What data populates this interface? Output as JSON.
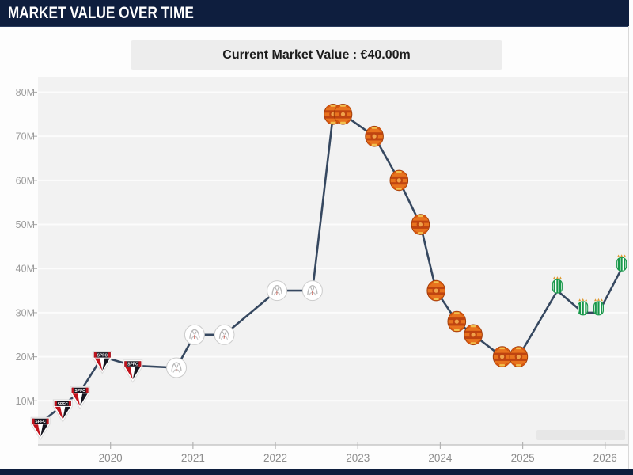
{
  "widget": {
    "title": "MARKET VALUE OVER TIME",
    "current_value_banner": "Current Market Value : €40.00m"
  },
  "colors": {
    "header_bg": "#0e1e3e",
    "banner_bg": "#ededed",
    "plot_bg": "#f2f2f2",
    "gridline": "#fcfcfc",
    "axis_line": "#c8c8c8",
    "tick": "#b3b3b3",
    "y_label": "#9b9b9b",
    "x_label": "#8d8d8d",
    "line": "#364860",
    "sao_paulo_red": "#c1121c",
    "man_united_orange": "#e8731e",
    "betis_green": "#18984a",
    "ajax_silver": "#c9c9c9"
  },
  "icons": {
    "sao-paulo-fc-crest": "red/white/black shield with SPFC wordmark",
    "ajax-crest": "white/silver circle crest",
    "manchester-united-crest": "orange/red round crest",
    "real-betis-crest": "green/white striped crest with crown"
  },
  "chart_data": {
    "type": "line",
    "title": "MARKET VALUE OVER TIME",
    "subtitle": "Current Market Value : €40.00m",
    "xlabel": "",
    "ylabel": "",
    "x_ticks": [
      2020,
      2021,
      2022,
      2023,
      2024,
      2025,
      2026
    ],
    "y_ticks": [
      10,
      20,
      30,
      40,
      50,
      60,
      70,
      80
    ],
    "y_tick_suffix": "M",
    "xlim": [
      2019.12,
      2026.29
    ],
    "ylim": [
      0,
      83.5
    ],
    "grid": true,
    "legend": false,
    "marker_style": "club-crests",
    "unit": "EUR millions",
    "points": [
      {
        "x": 2019.15,
        "y": 5,
        "club": "sao-paulo-fc"
      },
      {
        "x": 2019.42,
        "y": 9,
        "club": "sao-paulo-fc"
      },
      {
        "x": 2019.63,
        "y": 12,
        "club": "sao-paulo-fc"
      },
      {
        "x": 2019.9,
        "y": 20,
        "club": "sao-paulo-fc"
      },
      {
        "x": 2020.27,
        "y": 18,
        "club": "sao-paulo-fc"
      },
      {
        "x": 2020.8,
        "y": 17.5,
        "club": "ajax"
      },
      {
        "x": 2021.02,
        "y": 25,
        "club": "ajax"
      },
      {
        "x": 2021.38,
        "y": 25,
        "club": "ajax"
      },
      {
        "x": 2022.02,
        "y": 35,
        "club": "ajax"
      },
      {
        "x": 2022.45,
        "y": 35,
        "club": "ajax"
      },
      {
        "x": 2022.7,
        "y": 75,
        "club": "manchester-united"
      },
      {
        "x": 2022.82,
        "y": 75,
        "club": "manchester-united"
      },
      {
        "x": 2023.2,
        "y": 70,
        "club": "manchester-united"
      },
      {
        "x": 2023.5,
        "y": 60,
        "club": "manchester-united"
      },
      {
        "x": 2023.76,
        "y": 50,
        "club": "manchester-united"
      },
      {
        "x": 2023.95,
        "y": 35,
        "club": "manchester-united"
      },
      {
        "x": 2024.2,
        "y": 28,
        "club": "manchester-united"
      },
      {
        "x": 2024.4,
        "y": 25,
        "club": "manchester-united"
      },
      {
        "x": 2024.75,
        "y": 20,
        "club": "manchester-united"
      },
      {
        "x": 2024.95,
        "y": 20,
        "club": "manchester-united"
      },
      {
        "x": 2025.42,
        "y": 35,
        "club": "real-betis"
      },
      {
        "x": 2025.73,
        "y": 30,
        "club": "real-betis"
      },
      {
        "x": 2025.92,
        "y": 30,
        "club": "real-betis"
      },
      {
        "x": 2026.2,
        "y": 40,
        "club": "real-betis"
      }
    ]
  }
}
